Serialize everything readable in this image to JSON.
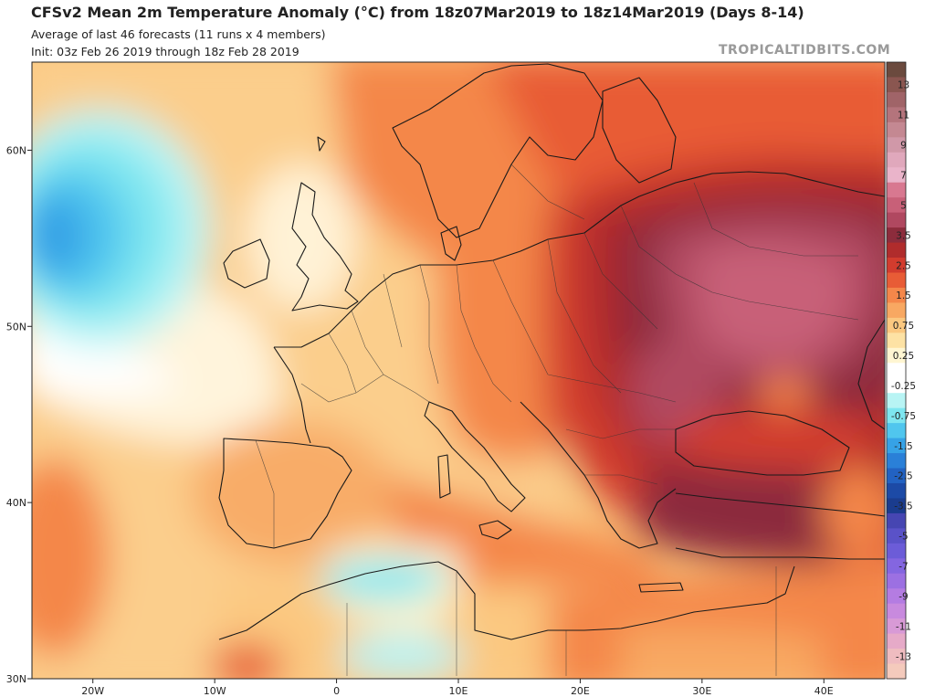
{
  "header": {
    "title": "CFSv2 Mean 2m Temperature Anomaly (°C) from 18z07Mar2019 to 18z14Mar2019 (Days 8-14)",
    "subtitle": "Average of last 46 forecasts (11 runs x 4 members)",
    "init": "Init: 03z Feb 26 2019 through 18z Feb 28 2019",
    "brand": "TROPICALTIDBITS.COM"
  },
  "map": {
    "region": "Europe",
    "lon_range": [
      -25,
      45
    ],
    "lat_range": [
      30,
      65
    ],
    "lon_ticks": [
      {
        "value": -20,
        "label": "20W"
      },
      {
        "value": -10,
        "label": "10W"
      },
      {
        "value": 0,
        "label": "0"
      },
      {
        "value": 10,
        "label": "10E"
      },
      {
        "value": 20,
        "label": "20E"
      },
      {
        "value": 30,
        "label": "30E"
      },
      {
        "value": 40,
        "label": "40E"
      }
    ],
    "lat_ticks": [
      {
        "value": 60,
        "label": "60N"
      },
      {
        "value": 50,
        "label": "50N"
      },
      {
        "value": 40,
        "label": "40N"
      },
      {
        "value": 30,
        "label": "30N"
      }
    ]
  },
  "colorbar": {
    "unit": "°C",
    "levels": [
      {
        "label": "",
        "color": "#6b4a3e"
      },
      {
        "label": "13",
        "color": "#8a5650"
      },
      {
        "label": "",
        "color": "#a06468"
      },
      {
        "label": "11",
        "color": "#b4747c"
      },
      {
        "label": "",
        "color": "#c48892"
      },
      {
        "label": "9",
        "color": "#d098a8"
      },
      {
        "label": "",
        "color": "#e0a8bc"
      },
      {
        "label": "7",
        "color": "#eab4ca"
      },
      {
        "label": "",
        "color": "#d87890"
      },
      {
        "label": "5",
        "color": "#c86078"
      },
      {
        "label": "",
        "color": "#b04860"
      },
      {
        "label": "3.5",
        "color": "#8c2c3c"
      },
      {
        "label": "",
        "color": "#b02c2c"
      },
      {
        "label": "2.5",
        "color": "#d23c2e"
      },
      {
        "label": "",
        "color": "#e85c36"
      },
      {
        "label": "1.5",
        "color": "#f4874a"
      },
      {
        "label": "",
        "color": "#f8a862"
      },
      {
        "label": "0.75",
        "color": "#fbc880"
      },
      {
        "label": "",
        "color": "#fde2a4"
      },
      {
        "label": "0.25",
        "color": "#fff6d2"
      },
      {
        "label": "",
        "color": "#ffffff"
      },
      {
        "label": "-0.25",
        "color": "#ffffff"
      },
      {
        "label": "",
        "color": "#b8f4f4"
      },
      {
        "label": "-0.75",
        "color": "#7ee6f0"
      },
      {
        "label": "",
        "color": "#50c6ee"
      },
      {
        "label": "-1.5",
        "color": "#36a2e6"
      },
      {
        "label": "",
        "color": "#2a80d8"
      },
      {
        "label": "-2.5",
        "color": "#2262c2"
      },
      {
        "label": "",
        "color": "#1c4aa6"
      },
      {
        "label": "-3.5",
        "color": "#1a3c8e"
      },
      {
        "label": "",
        "color": "#4646b2"
      },
      {
        "label": "-5",
        "color": "#5a52c8"
      },
      {
        "label": "",
        "color": "#6c5cd8"
      },
      {
        "label": "-7",
        "color": "#8466e0"
      },
      {
        "label": "",
        "color": "#9c70e2"
      },
      {
        "label": "-9",
        "color": "#b47ce2"
      },
      {
        "label": "",
        "color": "#c88ade"
      },
      {
        "label": "-11",
        "color": "#d89ad6"
      },
      {
        "label": "",
        "color": "#e6aac8"
      },
      {
        "label": "-13",
        "color": "#efbcc0"
      },
      {
        "label": "",
        "color": "#f4cabc"
      }
    ]
  },
  "regions": [
    {
      "name": "atlantic-cold-anomaly",
      "anomaly": -2.5
    },
    {
      "name": "north-africa-cold-anomaly",
      "anomaly": -0.75
    },
    {
      "name": "eastern-europe-warm-core",
      "anomaly": 5
    },
    {
      "name": "black-sea-warm",
      "anomaly": 2.5
    },
    {
      "name": "balkans-warm",
      "anomaly": 3.5
    }
  ],
  "colors": {
    "coast": "#1a1a1a",
    "border": "#333333",
    "frame": "#222222"
  }
}
